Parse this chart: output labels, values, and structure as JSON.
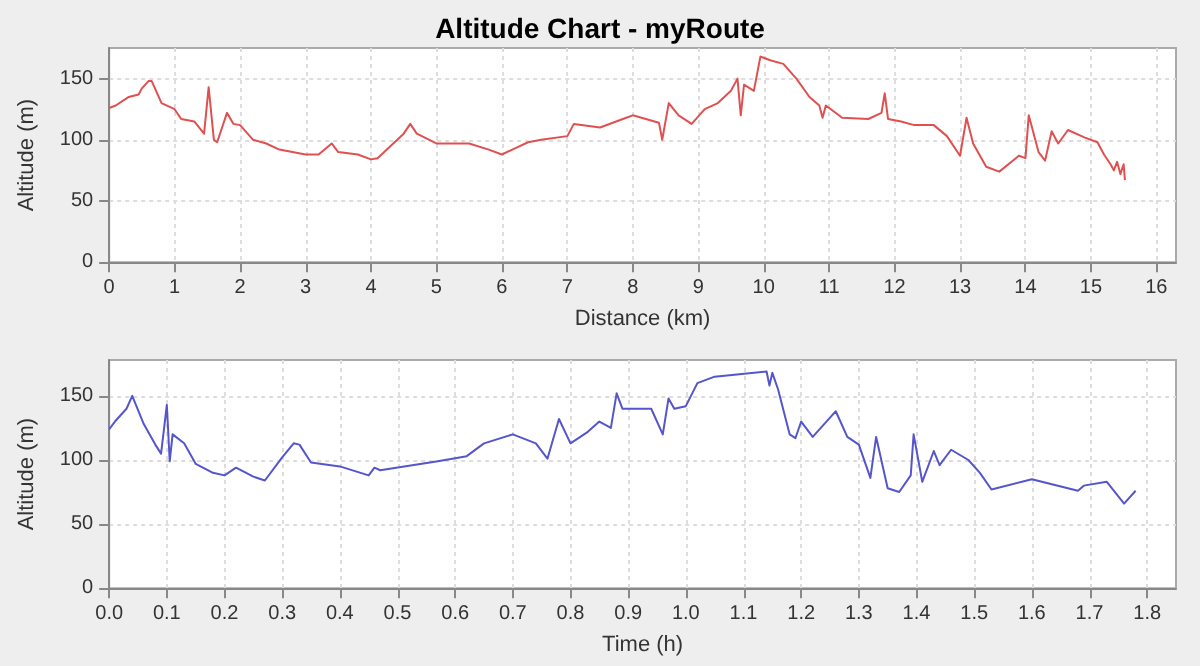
{
  "chart_data": [
    {
      "type": "line",
      "title": "Altitude Chart - myRoute",
      "xlabel": "Distance (km)",
      "ylabel": "Altitude (m)",
      "xlim": [
        0,
        16.3
      ],
      "xticks": [
        0,
        1,
        2,
        3,
        4,
        5,
        6,
        7,
        8,
        9,
        10,
        11,
        12,
        13,
        14,
        15,
        16
      ],
      "ylim": [
        0,
        175
      ],
      "yticks": [
        0,
        50,
        100,
        150
      ],
      "grid": true,
      "marker": "none",
      "line_style": "solid",
      "series": [
        {
          "color": "#e05050",
          "x": [
            0,
            0.1,
            0.3,
            0.45,
            0.5,
            0.6,
            0.65,
            0.8,
            1.0,
            1.1,
            1.3,
            1.45,
            1.52,
            1.6,
            1.65,
            1.8,
            1.9,
            2.0,
            2.2,
            2.4,
            2.6,
            3.0,
            3.2,
            3.4,
            3.5,
            3.8,
            4.0,
            4.1,
            4.3,
            4.5,
            4.6,
            4.7,
            5.0,
            5.5,
            5.8,
            6.0,
            6.2,
            6.4,
            6.6,
            7.0,
            7.1,
            7.5,
            7.9,
            8.0,
            8.4,
            8.45,
            8.55,
            8.7,
            8.9,
            9.1,
            9.3,
            9.5,
            9.6,
            9.65,
            9.7,
            9.85,
            9.95,
            10.1,
            10.3,
            10.5,
            10.7,
            10.85,
            10.9,
            10.95,
            11.2,
            11.6,
            11.8,
            11.85,
            11.9,
            12.1,
            12.3,
            12.6,
            12.8,
            13.0,
            13.1,
            13.2,
            13.4,
            13.6,
            13.9,
            14.0,
            14.05,
            14.2,
            14.3,
            14.4,
            14.5,
            14.65,
            14.9,
            15.1,
            15.2,
            15.3,
            15.35,
            15.4,
            15.45,
            15.5,
            15.52
          ],
          "values": [
            126,
            128,
            135,
            137,
            142,
            148,
            148,
            130,
            125,
            117,
            115,
            105,
            143,
            100,
            98,
            122,
            113,
            112,
            100,
            97,
            92,
            88,
            88,
            97,
            90,
            88,
            84,
            85,
            95,
            105,
            113,
            105,
            97,
            97,
            92,
            88,
            93,
            98,
            100,
            103,
            113,
            110,
            118,
            120,
            114,
            100,
            130,
            120,
            113,
            125,
            130,
            140,
            150,
            120,
            145,
            140,
            168,
            165,
            162,
            150,
            135,
            128,
            118,
            128,
            118,
            117,
            122,
            138,
            117,
            115,
            112,
            112,
            103,
            87,
            118,
            97,
            78,
            74,
            87,
            85,
            120,
            90,
            83,
            107,
            97,
            108,
            102,
            98,
            88,
            80,
            75,
            82,
            72,
            80,
            67
          ]
        }
      ]
    },
    {
      "type": "line",
      "xlabel": "Time (h)",
      "ylabel": "Altitude (m)",
      "xlim": [
        0,
        1.85
      ],
      "xticks": [
        {
          "value": 0,
          "label": "0.0"
        },
        0.1,
        0.2,
        0.3,
        0.4,
        0.5,
        0.6,
        0.7,
        0.8,
        0.9,
        {
          "value": 1,
          "label": "1.0"
        },
        1.1,
        1.2,
        1.3,
        1.4,
        1.5,
        1.6,
        1.7,
        1.8
      ],
      "ylim": [
        0,
        178
      ],
      "yticks": [
        0,
        50,
        100,
        150
      ],
      "grid": true,
      "marker": "none",
      "line_style": "solid",
      "series": [
        {
          "color": "#5555cc",
          "x": [
            0,
            0.01,
            0.03,
            0.04,
            0.06,
            0.08,
            0.09,
            0.1,
            0.105,
            0.11,
            0.13,
            0.15,
            0.18,
            0.2,
            0.22,
            0.25,
            0.27,
            0.3,
            0.32,
            0.33,
            0.35,
            0.4,
            0.45,
            0.46,
            0.47,
            0.57,
            0.62,
            0.65,
            0.7,
            0.74,
            0.76,
            0.78,
            0.8,
            0.83,
            0.85,
            0.87,
            0.88,
            0.89,
            0.94,
            0.96,
            0.97,
            0.98,
            1.0,
            1.02,
            1.05,
            1.14,
            1.145,
            1.15,
            1.16,
            1.18,
            1.19,
            1.2,
            1.22,
            1.25,
            1.26,
            1.28,
            1.3,
            1.32,
            1.33,
            1.35,
            1.37,
            1.39,
            1.395,
            1.41,
            1.43,
            1.44,
            1.46,
            1.49,
            1.51,
            1.53,
            1.6,
            1.68,
            1.69,
            1.73,
            1.76,
            1.78
          ],
          "values": [
            124,
            130,
            140,
            150,
            128,
            112,
            105,
            143,
            99,
            120,
            113,
            97,
            90,
            88,
            94,
            87,
            84,
            102,
            113,
            112,
            98,
            95,
            88,
            94,
            92,
            99,
            103,
            113,
            120,
            113,
            101,
            132,
            113,
            122,
            130,
            125,
            152,
            140,
            140,
            120,
            148,
            140,
            142,
            160,
            165,
            169,
            158,
            168,
            155,
            120,
            117,
            130,
            118,
            133,
            138,
            118,
            112,
            86,
            118,
            78,
            75,
            88,
            120,
            83,
            107,
            96,
            108,
            100,
            90,
            77,
            85,
            76,
            80,
            83,
            66,
            76
          ]
        }
      ]
    }
  ]
}
